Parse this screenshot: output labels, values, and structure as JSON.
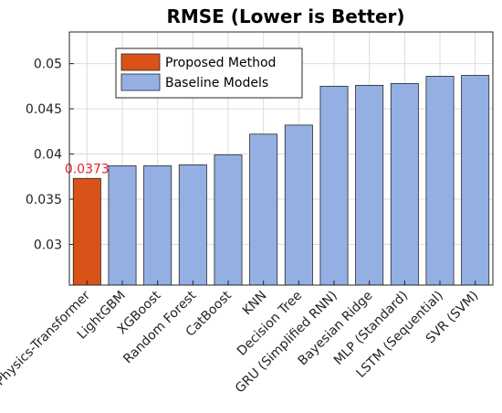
{
  "chart_data": {
    "type": "bar",
    "title": "RMSE (Lower is Better)",
    "xlabel": "",
    "ylabel": "",
    "ylim": [
      0.0255,
      0.0535
    ],
    "yticks": [
      0.03,
      0.035,
      0.04,
      0.045,
      0.05
    ],
    "ytick_labels": [
      "0.03",
      "0.035",
      "0.04",
      "0.045",
      "0.05"
    ],
    "grid": true,
    "legend_position": "top-left",
    "categories": [
      "Physics-Transformer",
      "LightGBM",
      "XGBoost",
      "Random Forest",
      "CatBoost",
      "KNN",
      "Decision Tree",
      "GRU (Simplified RNN)",
      "Bayesian Ridge",
      "MLP (Standard)",
      "LSTM (Sequential)",
      "SVR (SVM)"
    ],
    "values": [
      0.0373,
      0.0387,
      0.0387,
      0.0388,
      0.0399,
      0.0422,
      0.0432,
      0.0475,
      0.0476,
      0.0478,
      0.0486,
      0.0487
    ],
    "groups": [
      "proposed",
      "baseline",
      "baseline",
      "baseline",
      "baseline",
      "baseline",
      "baseline",
      "baseline",
      "baseline",
      "baseline",
      "baseline",
      "baseline"
    ],
    "legend": [
      {
        "name": "Proposed Method",
        "color": "#d95319"
      },
      {
        "name": "Baseline Models",
        "color": "#94b0e3"
      }
    ],
    "data_labels": [
      {
        "index": 0,
        "text": "0.0373",
        "color": "#e8202a"
      }
    ]
  }
}
